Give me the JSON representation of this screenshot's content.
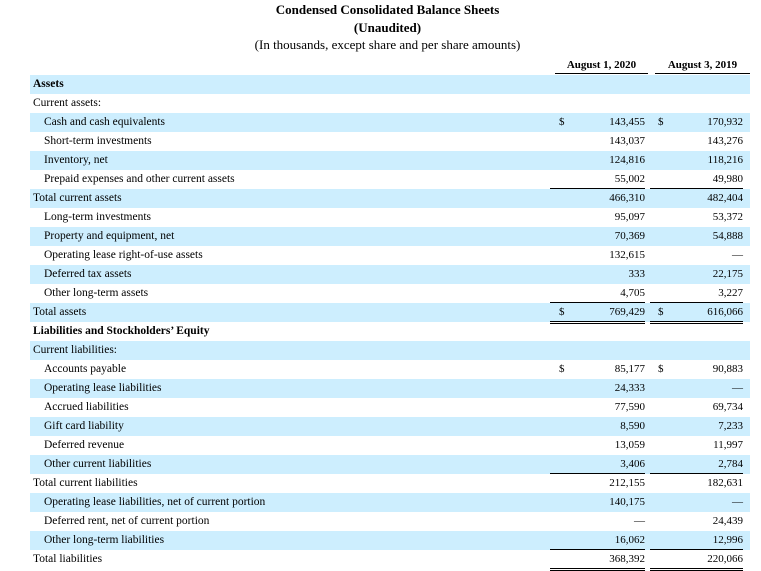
{
  "title": "Condensed Consolidated Balance Sheets",
  "subtitle": "(Unaudited)",
  "note": "(In thousands, except share and per share amounts)",
  "columns": [
    "August 1, 2020",
    "August 3, 2019"
  ],
  "rows": [
    {
      "label": "Assets",
      "style": "b",
      "shade": true
    },
    {
      "label": "Current assets:",
      "shade": false
    },
    {
      "label": "Cash and cash equivalents",
      "in": true,
      "shade": true,
      "d1": "$",
      "v1": "143,455",
      "d2": "$",
      "v2": "170,932"
    },
    {
      "label": "Short-term investments",
      "in": true,
      "shade": false,
      "v1": "143,037",
      "v2": "143,276"
    },
    {
      "label": "Inventory, net",
      "in": true,
      "shade": true,
      "v1": "124,816",
      "v2": "118,216"
    },
    {
      "label": "Prepaid expenses and other current assets",
      "in": true,
      "shade": false,
      "v1": "55,002",
      "v2": "49,980",
      "line": "ul"
    },
    {
      "label": "Total current assets",
      "shade": true,
      "v1": "466,310",
      "v2": "482,404"
    },
    {
      "label": "Long-term investments",
      "in": true,
      "shade": false,
      "v1": "95,097",
      "v2": "53,372"
    },
    {
      "label": "Property and equipment, net",
      "in": true,
      "shade": true,
      "v1": "70,369",
      "v2": "54,888"
    },
    {
      "label": "Operating lease right-of-use assets",
      "in": true,
      "shade": false,
      "v1": "132,615",
      "v2": "—"
    },
    {
      "label": "Deferred tax assets",
      "in": true,
      "shade": true,
      "v1": "333",
      "v2": "22,175"
    },
    {
      "label": "Other long-term assets",
      "in": true,
      "shade": false,
      "v1": "4,705",
      "v2": "3,227",
      "line": "ul"
    },
    {
      "label": "Total assets",
      "shade": true,
      "d1": "$",
      "v1": "769,429",
      "d2": "$",
      "v2": "616,066",
      "line": "dl"
    },
    {
      "label": "Liabilities and Stockholders’ Equity",
      "style": "b",
      "shade": false
    },
    {
      "label": "Current liabilities:",
      "shade": true
    },
    {
      "label": "Accounts payable",
      "in": true,
      "shade": false,
      "d1": "$",
      "v1": "85,177",
      "d2": "$",
      "v2": "90,883"
    },
    {
      "label": "Operating lease liabilities",
      "in": true,
      "shade": true,
      "v1": "24,333",
      "v2": "—"
    },
    {
      "label": "Accrued liabilities",
      "in": true,
      "shade": false,
      "v1": "77,590",
      "v2": "69,734"
    },
    {
      "label": "Gift card liability",
      "in": true,
      "shade": true,
      "v1": "8,590",
      "v2": "7,233"
    },
    {
      "label": "Deferred revenue",
      "in": true,
      "shade": false,
      "v1": "13,059",
      "v2": "11,997"
    },
    {
      "label": "Other current liabilities",
      "in": true,
      "shade": true,
      "v1": "3,406",
      "v2": "2,784",
      "line": "ul"
    },
    {
      "label": "Total current liabilities",
      "shade": false,
      "v1": "212,155",
      "v2": "182,631"
    },
    {
      "label": "Operating lease liabilities, net of current portion",
      "in": true,
      "shade": true,
      "v1": "140,175",
      "v2": "—"
    },
    {
      "label": "Deferred rent, net of current portion",
      "in": true,
      "shade": false,
      "v1": "—",
      "v2": "24,439"
    },
    {
      "label": "Other long-term liabilities",
      "in": true,
      "shade": true,
      "v1": "16,062",
      "v2": "12,996",
      "line": "ul"
    },
    {
      "label": "Total liabilities",
      "shade": false,
      "v1": "368,392",
      "v2": "220,066",
      "line": "dl"
    }
  ]
}
